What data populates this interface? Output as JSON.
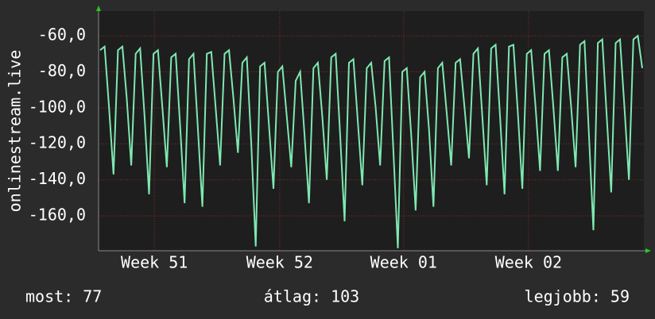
{
  "chart_data": {
    "type": "line",
    "y_label": "onlinestream.live",
    "color": "#7ee8b0",
    "values": [
      -68,
      -66,
      -100,
      -137,
      -68,
      -66,
      -95,
      -132,
      -70,
      -67,
      -105,
      -148,
      -70,
      -68,
      -100,
      -133,
      -72,
      -70,
      -110,
      -153,
      -73,
      -70,
      -112,
      -155,
      -70,
      -69,
      -100,
      -132,
      -70,
      -68,
      -95,
      -125,
      -75,
      -72,
      -120,
      -177,
      -77,
      -75,
      -110,
      -145,
      -80,
      -77,
      -105,
      -133,
      -85,
      -80,
      -115,
      -153,
      -78,
      -75,
      -105,
      -140,
      -72,
      -70,
      -115,
      -163,
      -75,
      -73,
      -108,
      -143,
      -78,
      -75,
      -100,
      -132,
      -74,
      -72,
      -125,
      -178,
      -80,
      -78,
      -115,
      -157,
      -83,
      -80,
      -112,
      -155,
      -78,
      -75,
      -103,
      -132,
      -75,
      -73,
      -100,
      -128,
      -70,
      -67,
      -105,
      -143,
      -67,
      -65,
      -105,
      -148,
      -66,
      -65,
      -103,
      -145,
      -70,
      -68,
      -100,
      -135,
      -70,
      -68,
      -100,
      -135,
      -72,
      -70,
      -100,
      -133,
      -65,
      -63,
      -115,
      -168,
      -64,
      -62,
      -105,
      -147,
      -64,
      -62,
      -100,
      -140,
      -62,
      -60,
      -78
    ],
    "xlim": [
      0,
      122
    ],
    "xticks": [
      {
        "value": 12.2,
        "label": "Week 51"
      },
      {
        "value": 40.4,
        "label": "Week 52"
      },
      {
        "value": 68.3,
        "label": "Week 01"
      },
      {
        "value": 96.4,
        "label": "Week 02"
      }
    ],
    "ylim": [
      -179.4,
      -46.3
    ],
    "yticks": [
      {
        "value": -160,
        "label": "-160,0"
      },
      {
        "value": -140,
        "label": "-140,0"
      },
      {
        "value": -120,
        "label": "-120,0"
      },
      {
        "value": -100,
        "label": "-100,0"
      },
      {
        "value": -80,
        "label": "-80,0"
      },
      {
        "value": -60,
        "label": "-60,0"
      }
    ],
    "grid": true,
    "footer": {
      "current": "most: 77",
      "average": "átlag: 103",
      "best": "legjobb: 59"
    }
  }
}
